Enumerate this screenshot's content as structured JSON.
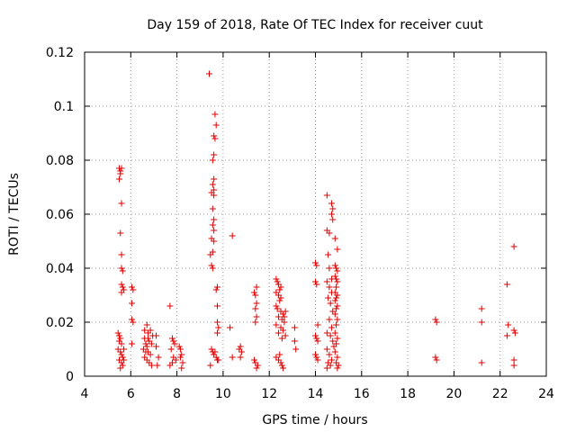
{
  "chart_data": {
    "type": "scatter",
    "title": "Day 159 of 2018, Rate Of TEC Index for receiver cuut",
    "xlabel": "GPS time / hours",
    "ylabel": "ROTI / TECUs",
    "xlim": [
      4,
      24
    ],
    "ylim": [
      0,
      0.12
    ],
    "x_ticks": [
      4,
      6,
      8,
      10,
      12,
      14,
      16,
      18,
      20,
      22,
      24
    ],
    "y_ticks": [
      0,
      0.02,
      0.04,
      0.06,
      0.08,
      0.1,
      0.12
    ],
    "grid": true,
    "marker": "+",
    "marker_color": "#e00000",
    "series": [
      {
        "name": "ROTI",
        "points": [
          [
            5.5,
            0.077
          ],
          [
            5.55,
            0.076
          ],
          [
            5.6,
            0.077
          ],
          [
            5.5,
            0.073
          ],
          [
            5.55,
            0.075
          ],
          [
            5.6,
            0.064
          ],
          [
            5.55,
            0.053
          ],
          [
            5.6,
            0.045
          ],
          [
            5.6,
            0.04
          ],
          [
            5.65,
            0.039
          ],
          [
            5.6,
            0.034
          ],
          [
            5.65,
            0.033
          ],
          [
            5.7,
            0.032
          ],
          [
            5.6,
            0.031
          ],
          [
            5.45,
            0.016
          ],
          [
            5.5,
            0.015
          ],
          [
            5.55,
            0.014
          ],
          [
            5.5,
            0.013
          ],
          [
            5.6,
            0.012
          ],
          [
            5.45,
            0.01
          ],
          [
            5.55,
            0.009
          ],
          [
            5.6,
            0.008
          ],
          [
            5.65,
            0.007
          ],
          [
            5.5,
            0.006
          ],
          [
            5.6,
            0.005
          ],
          [
            5.65,
            0.004
          ],
          [
            5.55,
            0.003
          ],
          [
            5.7,
            0.006
          ],
          [
            5.7,
            0.01
          ],
          [
            6.05,
            0.033
          ],
          [
            6.1,
            0.032
          ],
          [
            6.05,
            0.027
          ],
          [
            6.05,
            0.021
          ],
          [
            6.1,
            0.02
          ],
          [
            6.05,
            0.012
          ],
          [
            6.6,
            0.017
          ],
          [
            6.7,
            0.019
          ],
          [
            6.75,
            0.016
          ],
          [
            6.6,
            0.014
          ],
          [
            6.8,
            0.013
          ],
          [
            6.65,
            0.012
          ],
          [
            6.7,
            0.011
          ],
          [
            6.9,
            0.012
          ],
          [
            6.55,
            0.01
          ],
          [
            6.75,
            0.009
          ],
          [
            6.85,
            0.008
          ],
          [
            6.6,
            0.007
          ],
          [
            6.7,
            0.006
          ],
          [
            6.8,
            0.005
          ],
          [
            6.9,
            0.004
          ],
          [
            6.65,
            0.009
          ],
          [
            6.95,
            0.015
          ],
          [
            6.75,
            0.014
          ],
          [
            6.85,
            0.017
          ],
          [
            7.1,
            0.011
          ],
          [
            7.2,
            0.007
          ],
          [
            7.15,
            0.004
          ],
          [
            7.1,
            0.015
          ],
          [
            7.7,
            0.026
          ],
          [
            7.8,
            0.014
          ],
          [
            7.85,
            0.013
          ],
          [
            7.9,
            0.012
          ],
          [
            7.75,
            0.01
          ],
          [
            7.85,
            0.007
          ],
          [
            7.95,
            0.006
          ],
          [
            7.8,
            0.005
          ],
          [
            7.7,
            0.004
          ],
          [
            8.1,
            0.011
          ],
          [
            8.15,
            0.01
          ],
          [
            8.2,
            0.008
          ],
          [
            8.15,
            0.007
          ],
          [
            8.25,
            0.005
          ],
          [
            8.2,
            0.003
          ],
          [
            9.4,
            0.112
          ],
          [
            9.65,
            0.097
          ],
          [
            9.7,
            0.093
          ],
          [
            9.6,
            0.089
          ],
          [
            9.65,
            0.088
          ],
          [
            9.6,
            0.082
          ],
          [
            9.55,
            0.08
          ],
          [
            9.6,
            0.073
          ],
          [
            9.55,
            0.071
          ],
          [
            9.6,
            0.069
          ],
          [
            9.5,
            0.068
          ],
          [
            9.6,
            0.067
          ],
          [
            9.55,
            0.062
          ],
          [
            9.6,
            0.058
          ],
          [
            9.55,
            0.056
          ],
          [
            9.6,
            0.054
          ],
          [
            9.5,
            0.051
          ],
          [
            9.6,
            0.05
          ],
          [
            9.55,
            0.046
          ],
          [
            9.45,
            0.045
          ],
          [
            9.5,
            0.041
          ],
          [
            9.55,
            0.04
          ],
          [
            9.75,
            0.033
          ],
          [
            9.7,
            0.032
          ],
          [
            9.75,
            0.026
          ],
          [
            9.75,
            0.02
          ],
          [
            9.8,
            0.018
          ],
          [
            9.75,
            0.016
          ],
          [
            9.5,
            0.01
          ],
          [
            9.55,
            0.009
          ],
          [
            9.6,
            0.008
          ],
          [
            9.65,
            0.009
          ],
          [
            9.7,
            0.007
          ],
          [
            9.75,
            0.006
          ],
          [
            9.8,
            0.006
          ],
          [
            9.45,
            0.004
          ],
          [
            10.4,
            0.052
          ],
          [
            10.3,
            0.018
          ],
          [
            10.75,
            0.011
          ],
          [
            10.7,
            0.01
          ],
          [
            10.8,
            0.009
          ],
          [
            10.75,
            0.007
          ],
          [
            10.4,
            0.007
          ],
          [
            11.45,
            0.033
          ],
          [
            11.35,
            0.031
          ],
          [
            11.4,
            0.03
          ],
          [
            11.45,
            0.027
          ],
          [
            11.4,
            0.025
          ],
          [
            11.45,
            0.022
          ],
          [
            11.4,
            0.02
          ],
          [
            11.35,
            0.006
          ],
          [
            11.4,
            0.005
          ],
          [
            11.5,
            0.004
          ],
          [
            11.45,
            0.003
          ],
          [
            12.3,
            0.036
          ],
          [
            12.35,
            0.035
          ],
          [
            12.4,
            0.034
          ],
          [
            12.5,
            0.033
          ],
          [
            12.45,
            0.032
          ],
          [
            12.3,
            0.031
          ],
          [
            12.4,
            0.03
          ],
          [
            12.5,
            0.029
          ],
          [
            12.45,
            0.028
          ],
          [
            12.3,
            0.026
          ],
          [
            12.35,
            0.025
          ],
          [
            12.5,
            0.024
          ],
          [
            12.6,
            0.023
          ],
          [
            12.4,
            0.022
          ],
          [
            12.55,
            0.021
          ],
          [
            12.65,
            0.02
          ],
          [
            12.3,
            0.019
          ],
          [
            12.5,
            0.018
          ],
          [
            12.6,
            0.017
          ],
          [
            12.4,
            0.016
          ],
          [
            12.7,
            0.015
          ],
          [
            12.55,
            0.014
          ],
          [
            12.3,
            0.007
          ],
          [
            12.4,
            0.006
          ],
          [
            12.5,
            0.005
          ],
          [
            12.55,
            0.004
          ],
          [
            12.6,
            0.003
          ],
          [
            12.45,
            0.008
          ],
          [
            12.65,
            0.022
          ],
          [
            12.7,
            0.024
          ],
          [
            13.1,
            0.018
          ],
          [
            13.1,
            0.013
          ],
          [
            13.15,
            0.01
          ],
          [
            14.0,
            0.042
          ],
          [
            14.05,
            0.041
          ],
          [
            14.0,
            0.035
          ],
          [
            14.05,
            0.034
          ],
          [
            14.1,
            0.019
          ],
          [
            14.0,
            0.015
          ],
          [
            14.05,
            0.014
          ],
          [
            14.1,
            0.013
          ],
          [
            14.0,
            0.008
          ],
          [
            14.05,
            0.007
          ],
          [
            14.1,
            0.006
          ],
          [
            14.5,
            0.067
          ],
          [
            14.7,
            0.064
          ],
          [
            14.75,
            0.062
          ],
          [
            14.7,
            0.06
          ],
          [
            14.75,
            0.058
          ],
          [
            14.5,
            0.054
          ],
          [
            14.6,
            0.053
          ],
          [
            14.55,
            0.045
          ],
          [
            14.6,
            0.04
          ],
          [
            14.7,
            0.036
          ],
          [
            14.5,
            0.035
          ],
          [
            14.6,
            0.033
          ],
          [
            14.7,
            0.031
          ],
          [
            14.55,
            0.029
          ],
          [
            14.65,
            0.027
          ],
          [
            14.75,
            0.024
          ],
          [
            14.6,
            0.021
          ],
          [
            14.7,
            0.018
          ],
          [
            14.5,
            0.016
          ],
          [
            14.65,
            0.015
          ],
          [
            14.75,
            0.013
          ],
          [
            14.5,
            0.01
          ],
          [
            14.6,
            0.008
          ],
          [
            14.7,
            0.006
          ],
          [
            14.55,
            0.005
          ],
          [
            14.65,
            0.004
          ],
          [
            14.5,
            0.003
          ],
          [
            14.8,
            0.011
          ],
          [
            14.85,
            0.051
          ],
          [
            14.95,
            0.047
          ],
          [
            14.85,
            0.041
          ],
          [
            14.9,
            0.04
          ],
          [
            14.95,
            0.039
          ],
          [
            14.85,
            0.037
          ],
          [
            14.9,
            0.036
          ],
          [
            14.95,
            0.035
          ],
          [
            14.9,
            0.033
          ],
          [
            14.85,
            0.031
          ],
          [
            14.95,
            0.03
          ],
          [
            14.9,
            0.029
          ],
          [
            14.85,
            0.028
          ],
          [
            14.95,
            0.026
          ],
          [
            14.9,
            0.025
          ],
          [
            14.85,
            0.023
          ],
          [
            14.95,
            0.021
          ],
          [
            14.9,
            0.019
          ],
          [
            14.85,
            0.016
          ],
          [
            14.95,
            0.014
          ],
          [
            14.9,
            0.012
          ],
          [
            14.85,
            0.009
          ],
          [
            14.95,
            0.007
          ],
          [
            14.9,
            0.005
          ],
          [
            15.0,
            0.004
          ],
          [
            14.95,
            0.003
          ],
          [
            19.2,
            0.021
          ],
          [
            19.25,
            0.02
          ],
          [
            19.2,
            0.007
          ],
          [
            19.25,
            0.006
          ],
          [
            21.2,
            0.025
          ],
          [
            21.2,
            0.02
          ],
          [
            21.2,
            0.005
          ],
          [
            22.3,
            0.034
          ],
          [
            22.35,
            0.019
          ],
          [
            22.3,
            0.015
          ],
          [
            22.6,
            0.048
          ],
          [
            22.6,
            0.017
          ],
          [
            22.65,
            0.016
          ],
          [
            22.6,
            0.006
          ],
          [
            22.6,
            0.004
          ]
        ]
      }
    ]
  }
}
